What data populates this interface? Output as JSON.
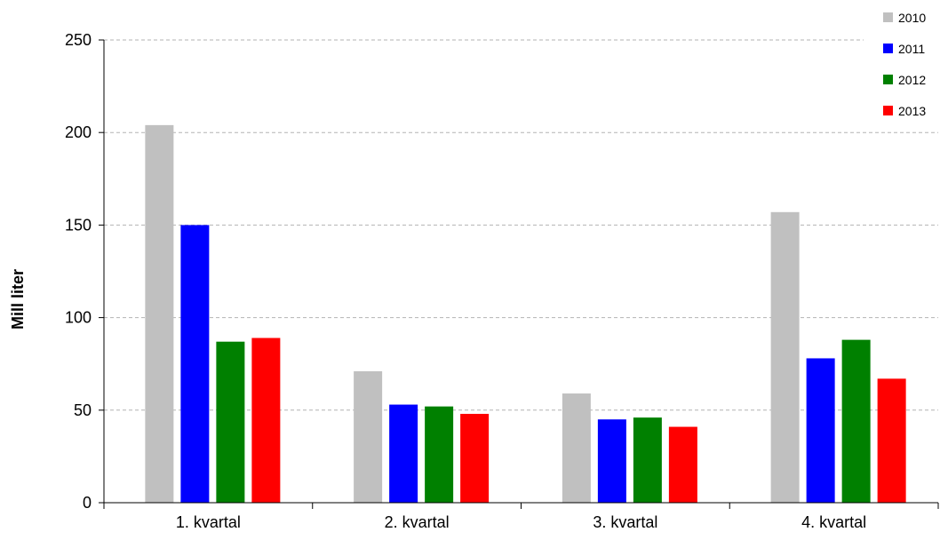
{
  "chart_data": {
    "type": "bar",
    "title": "",
    "xlabel": "",
    "ylabel": "Mill liter",
    "ylim": [
      0,
      250
    ],
    "yticks": [
      0,
      50,
      100,
      150,
      200,
      250
    ],
    "grid": "horizontal-dashed",
    "legend_position": "top-right",
    "categories": [
      "1. kvartal",
      "2. kvartal",
      "3. kvartal",
      "4. kvartal"
    ],
    "series": [
      {
        "name": "2010",
        "color": "#c0c0c0",
        "values": [
          204,
          71,
          59,
          157
        ]
      },
      {
        "name": "2011",
        "color": "#0000ff",
        "values": [
          150,
          53,
          45,
          78
        ]
      },
      {
        "name": "2012",
        "color": "#008000",
        "values": [
          87,
          52,
          46,
          88
        ]
      },
      {
        "name": "2013",
        "color": "#ff0000",
        "values": [
          89,
          48,
          41,
          67
        ]
      }
    ]
  }
}
